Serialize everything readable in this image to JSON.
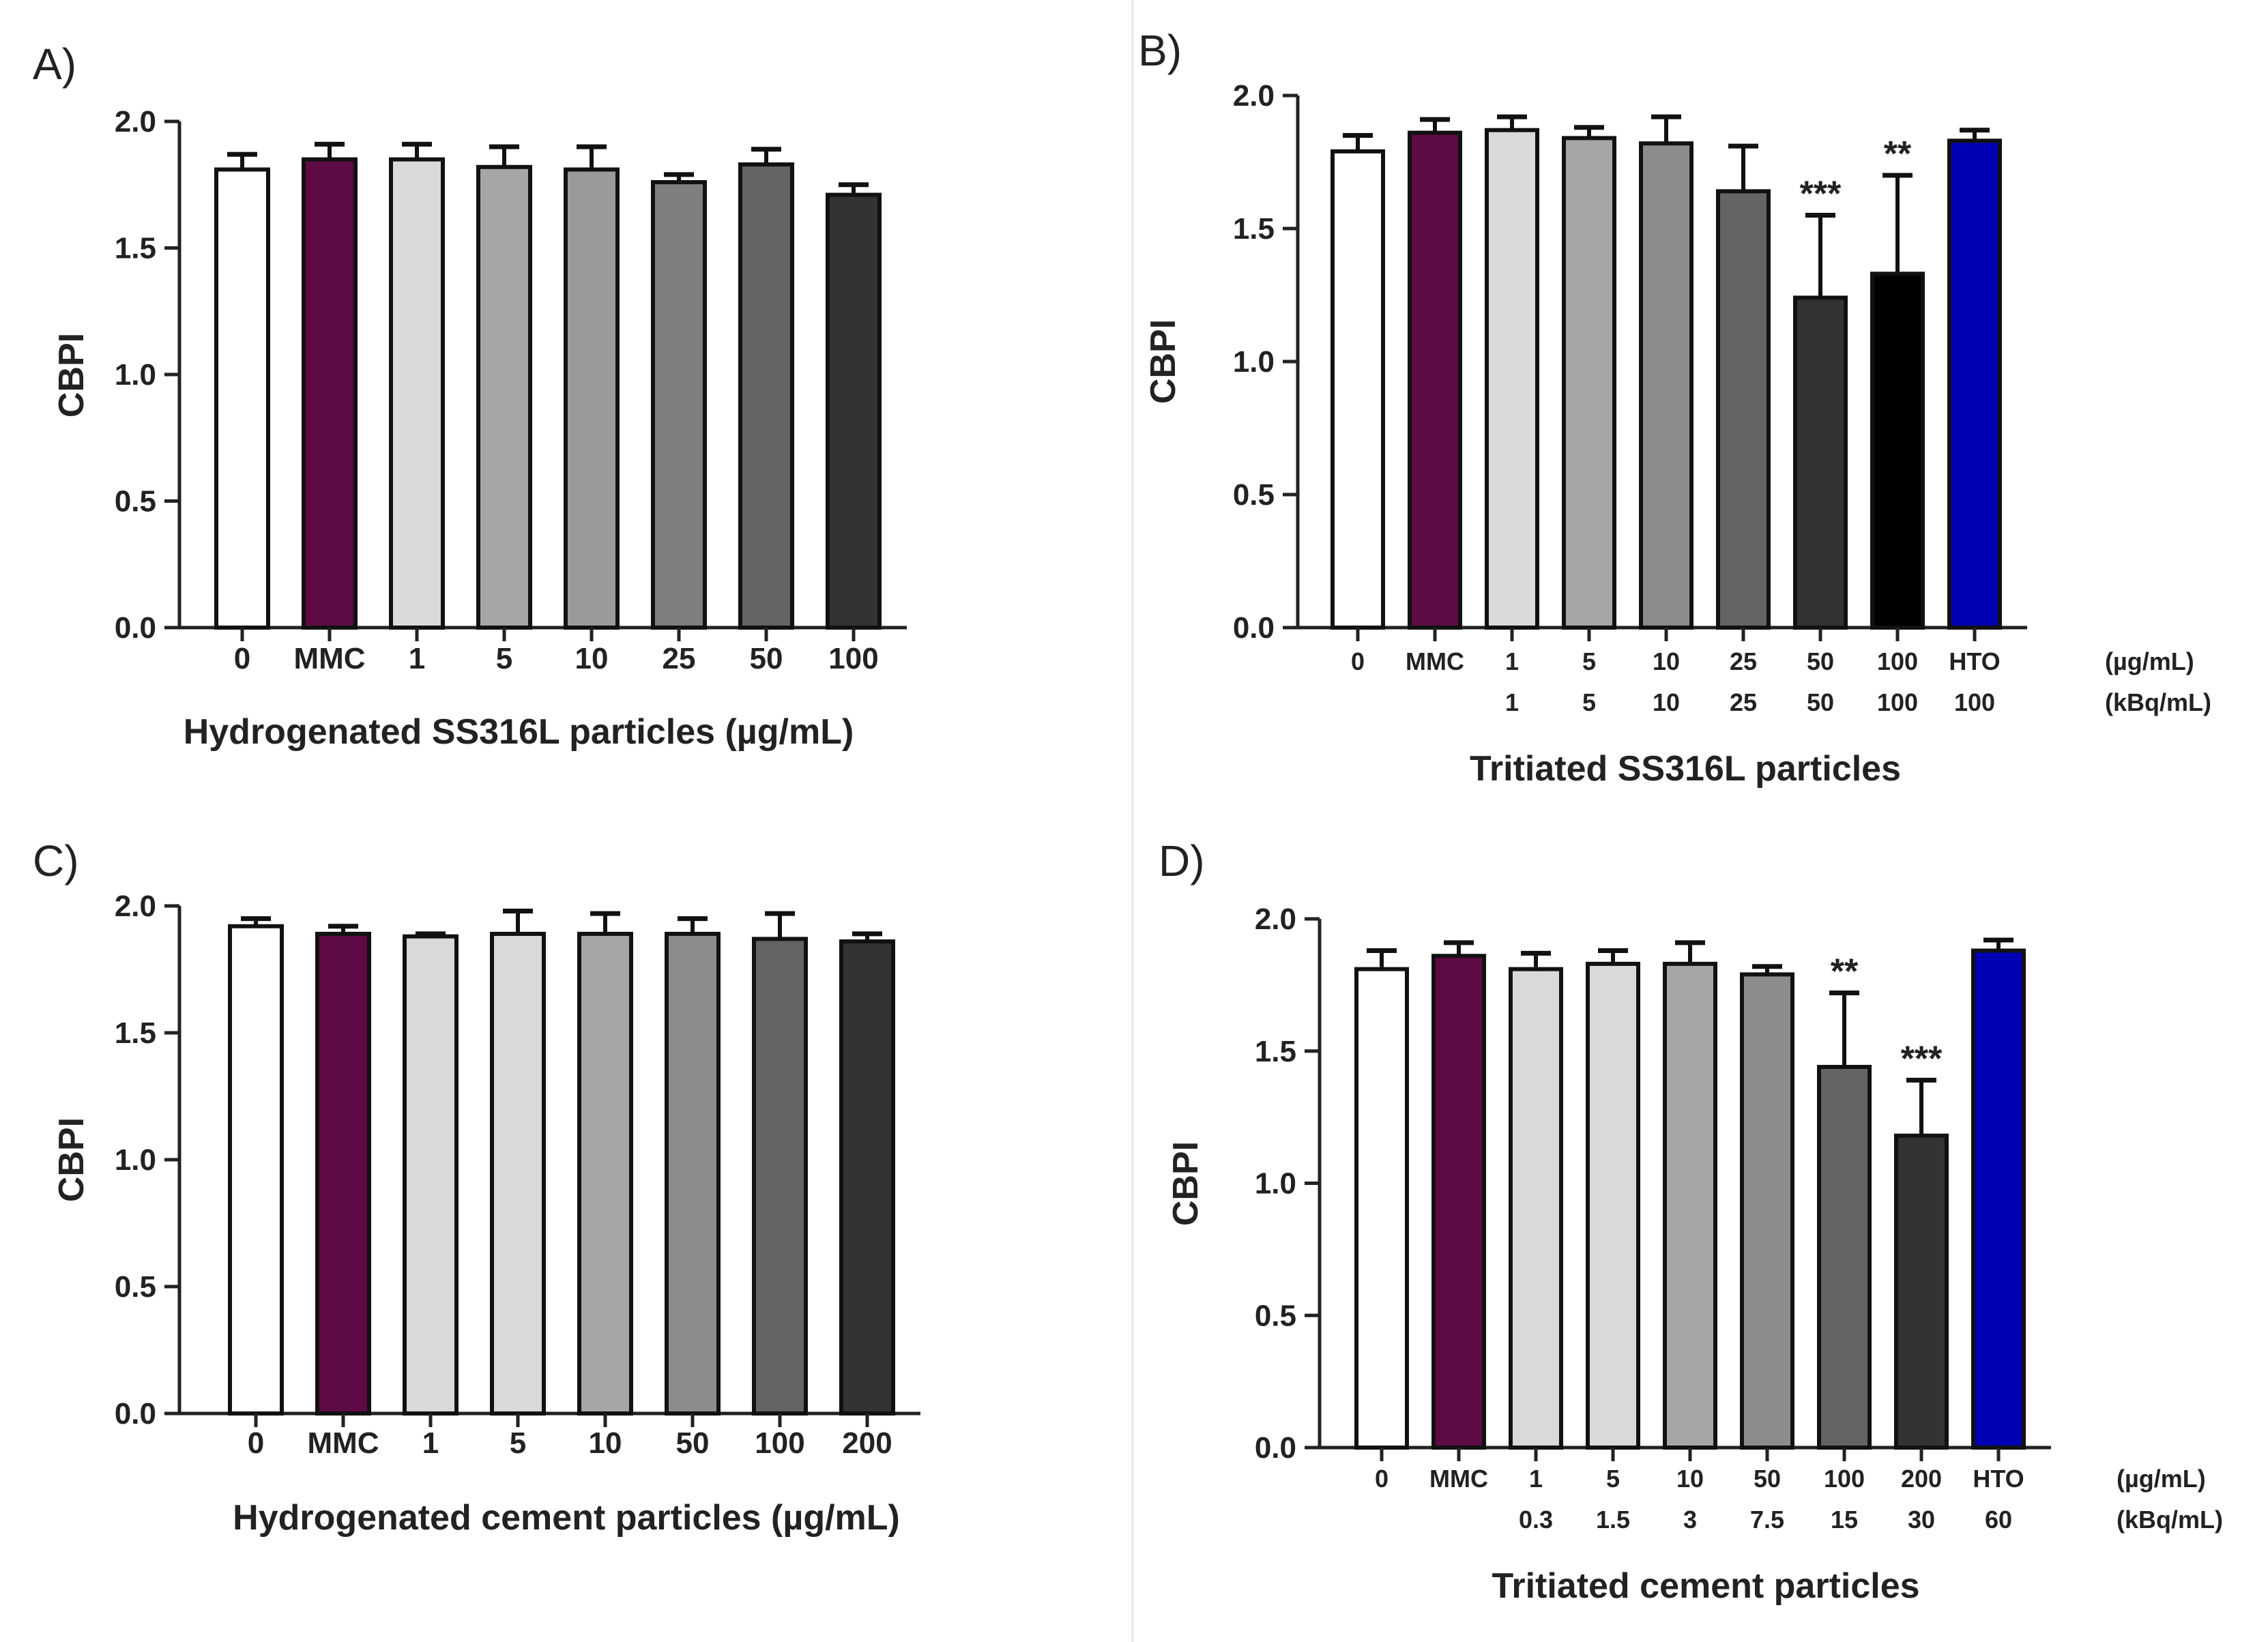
{
  "chart_data": [
    {
      "type": "bar",
      "panel": "A)",
      "ylabel": "CBPI",
      "xlabel": "Hydrogenated SS316L particles  (µg/mL)",
      "ylim": [
        0,
        2.0
      ],
      "yticks": [
        "0.0",
        "0.5",
        "1.0",
        "1.5",
        "2.0"
      ],
      "categories": [
        "0",
        "MMC",
        "1",
        "5",
        "10",
        "25",
        "50",
        "100"
      ],
      "values": [
        1.81,
        1.85,
        1.85,
        1.82,
        1.81,
        1.76,
        1.83,
        1.71
      ],
      "errors": [
        0.06,
        0.06,
        0.06,
        0.08,
        0.09,
        0.03,
        0.06,
        0.04
      ],
      "colors": [
        "#ffffff",
        "#5e0a44",
        "#d9d9d9",
        "#a6a6a6",
        "#9a9a9a",
        "#7f7f7f",
        "#646464",
        "#333333"
      ],
      "significance": [
        "",
        "",
        "",
        "",
        "",
        "",
        "",
        ""
      ]
    },
    {
      "type": "bar",
      "panel": "B)",
      "ylabel": "CBPI",
      "xlabel": "Tritiated SS316L particles",
      "ylim": [
        0,
        2.0
      ],
      "yticks": [
        "0.0",
        "0.5",
        "1.0",
        "1.5",
        "2.0"
      ],
      "categories": [
        "0",
        "MMC",
        "1",
        "5",
        "10",
        "25",
        "50",
        "100",
        "HTO"
      ],
      "categories_row2": [
        "",
        "",
        "1",
        "5",
        "10",
        "25",
        "50",
        "100",
        "100"
      ],
      "unit_row1": "(µg/mL)",
      "unit_row2": "(kBq/mL)",
      "values": [
        1.79,
        1.86,
        1.87,
        1.84,
        1.82,
        1.64,
        1.24,
        1.33,
        1.83
      ],
      "errors": [
        0.06,
        0.05,
        0.05,
        0.04,
        0.1,
        0.17,
        0.31,
        0.37,
        0.04
      ],
      "colors": [
        "#ffffff",
        "#5e0a44",
        "#d9d9d9",
        "#a6a6a6",
        "#8c8c8c",
        "#646464",
        "#333333",
        "#000000",
        "#0000b4"
      ],
      "significance": [
        "",
        "",
        "",
        "",
        "",
        "",
        "***",
        "**",
        ""
      ]
    },
    {
      "type": "bar",
      "panel": "C)",
      "ylabel": "CBPI",
      "xlabel": "Hydrogenated cement particles (µg/mL)",
      "ylim": [
        0,
        2.0
      ],
      "yticks": [
        "0.0",
        "0.5",
        "1.0",
        "1.5",
        "2.0"
      ],
      "categories": [
        "0",
        "MMC",
        "1",
        "5",
        "10",
        "50",
        "100",
        "200"
      ],
      "values": [
        1.92,
        1.89,
        1.88,
        1.89,
        1.89,
        1.89,
        1.87,
        1.86
      ],
      "errors": [
        0.03,
        0.03,
        0.01,
        0.09,
        0.08,
        0.06,
        0.1,
        0.03
      ],
      "colors": [
        "#ffffff",
        "#5e0a44",
        "#d9d9d9",
        "#d9d9d9",
        "#a6a6a6",
        "#8c8c8c",
        "#646464",
        "#333333"
      ],
      "significance": [
        "",
        "",
        "",
        "",
        "",
        "",
        "",
        ""
      ]
    },
    {
      "type": "bar",
      "panel": "D)",
      "ylabel": "CBPI",
      "xlabel": "Tritiated cement particles",
      "ylim": [
        0,
        2.0
      ],
      "yticks": [
        "0.0",
        "0.5",
        "1.0",
        "1.5",
        "2.0"
      ],
      "categories": [
        "0",
        "MMC",
        "1",
        "5",
        "10",
        "50",
        "100",
        "200",
        "HTO"
      ],
      "categories_row2": [
        "",
        "",
        "0.3",
        "1.5",
        "3",
        "7.5",
        "15",
        "30",
        "60"
      ],
      "unit_row1": "(µg/mL)",
      "unit_row2": "(kBq/mL)",
      "values": [
        1.81,
        1.86,
        1.81,
        1.83,
        1.83,
        1.79,
        1.44,
        1.18,
        1.88
      ],
      "errors": [
        0.07,
        0.05,
        0.06,
        0.05,
        0.08,
        0.03,
        0.28,
        0.21,
        0.04
      ],
      "colors": [
        "#ffffff",
        "#5e0a44",
        "#d9d9d9",
        "#d9d9d9",
        "#a6a6a6",
        "#8c8c8c",
        "#646464",
        "#333333",
        "#0000b4"
      ],
      "significance": [
        "",
        "",
        "",
        "",
        "",
        "",
        "**",
        "***",
        ""
      ]
    }
  ]
}
